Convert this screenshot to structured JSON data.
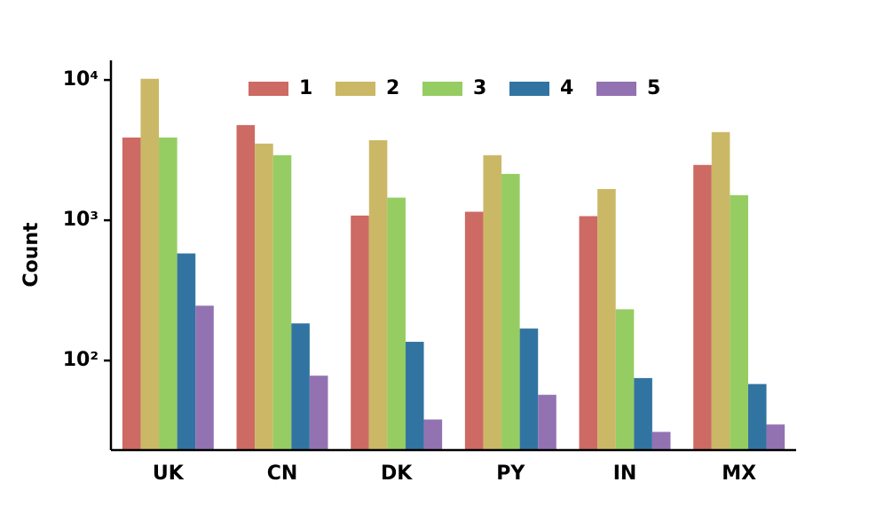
{
  "chart_data": {
    "type": "bar",
    "y_label": "Count",
    "yscale": "log",
    "categories": [
      "UK",
      "CN",
      "DK",
      "PY",
      "IN",
      "MX"
    ],
    "series": [
      {
        "name": "1",
        "color": "#cd6a64",
        "values": [
          3890,
          4770,
          1080,
          1150,
          1070,
          2480
        ]
      },
      {
        "name": "2",
        "color": "#cbb866",
        "values": [
          10200,
          3520,
          3720,
          2910,
          1670,
          4250
        ]
      },
      {
        "name": "3",
        "color": "#96cd62",
        "values": [
          3890,
          2910,
          1450,
          2140,
          232,
          1510
        ]
      },
      {
        "name": "4",
        "color": "#3274a1",
        "values": [
          580,
          184,
          136,
          169,
          75,
          68
        ]
      },
      {
        "name": "5",
        "color": "#9372b2",
        "values": [
          246,
          78,
          38,
          57,
          31,
          35
        ]
      }
    ],
    "ylim": [
      23,
      13800
    ],
    "yticks": [
      {
        "value": 100,
        "label": "10²"
      },
      {
        "value": 1000,
        "label": "10³"
      },
      {
        "value": 10000,
        "label": "10⁴"
      }
    ],
    "legend": "upper center"
  }
}
